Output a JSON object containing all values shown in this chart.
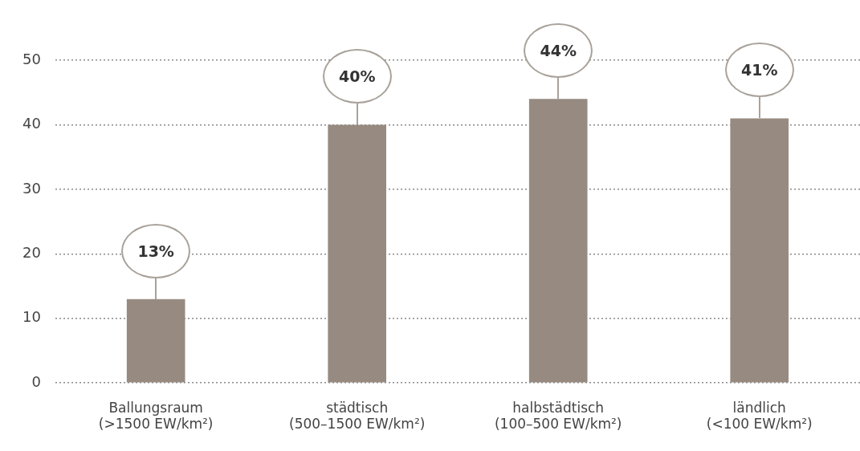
{
  "chart_data": {
    "type": "bar",
    "categories": [
      "Ballungsraum\n(>1500 EW/km²)",
      "städtisch\n(500–1500 EW/km²)",
      "halbstädtisch\n(100–500 EW/km²)",
      "ländlich\n(<100 EW/km²)"
    ],
    "values": [
      13,
      40,
      44,
      41
    ],
    "value_labels": [
      "13%",
      "40%",
      "44%",
      "41%"
    ],
    "color": "#978b81",
    "ylim": [
      0,
      50
    ],
    "yticks": [
      0,
      10,
      20,
      30,
      40,
      50
    ],
    "grid": "y"
  }
}
